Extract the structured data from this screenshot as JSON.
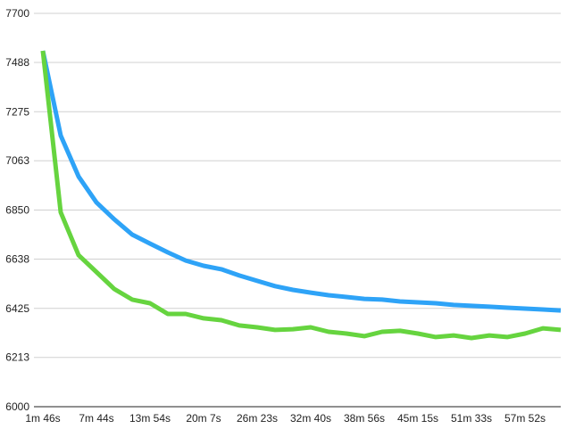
{
  "chart_data": {
    "type": "line",
    "title": "",
    "xlabel": "",
    "ylabel": "",
    "ylim": [
      6000,
      7700
    ],
    "y_ticks": [
      "6000",
      "6213",
      "6425",
      "6638",
      "6850",
      "7063",
      "7275",
      "7488",
      "7700"
    ],
    "x_tick_labels": [
      "1m 46s",
      "7m 44s",
      "13m 54s",
      "20m 7s",
      "26m 23s",
      "32m 40s",
      "38m 56s",
      "45m 15s",
      "51m 33s",
      "57m 52s"
    ],
    "x_tick_every": 3,
    "point_count": 30,
    "grid": true,
    "legend": "none",
    "series": [
      {
        "color": "#2ea3f7",
        "values": [
          7538,
          7172,
          6995,
          6883,
          6810,
          6744,
          6705,
          6667,
          6632,
          6609,
          6594,
          6567,
          6544,
          6521,
          6505,
          6493,
          6482,
          6474,
          6466,
          6463,
          6455,
          6451,
          6447,
          6440,
          6436,
          6432,
          6428,
          6424,
          6420,
          6416
        ]
      },
      {
        "color": "#66d43f",
        "values": [
          7538,
          6840,
          6655,
          6582,
          6509,
          6463,
          6447,
          6401,
          6401,
          6382,
          6374,
          6351,
          6343,
          6332,
          6335,
          6343,
          6324,
          6316,
          6305,
          6324,
          6328,
          6316,
          6301,
          6308,
          6297,
          6308,
          6301,
          6316,
          6339,
          6332
        ]
      }
    ]
  }
}
